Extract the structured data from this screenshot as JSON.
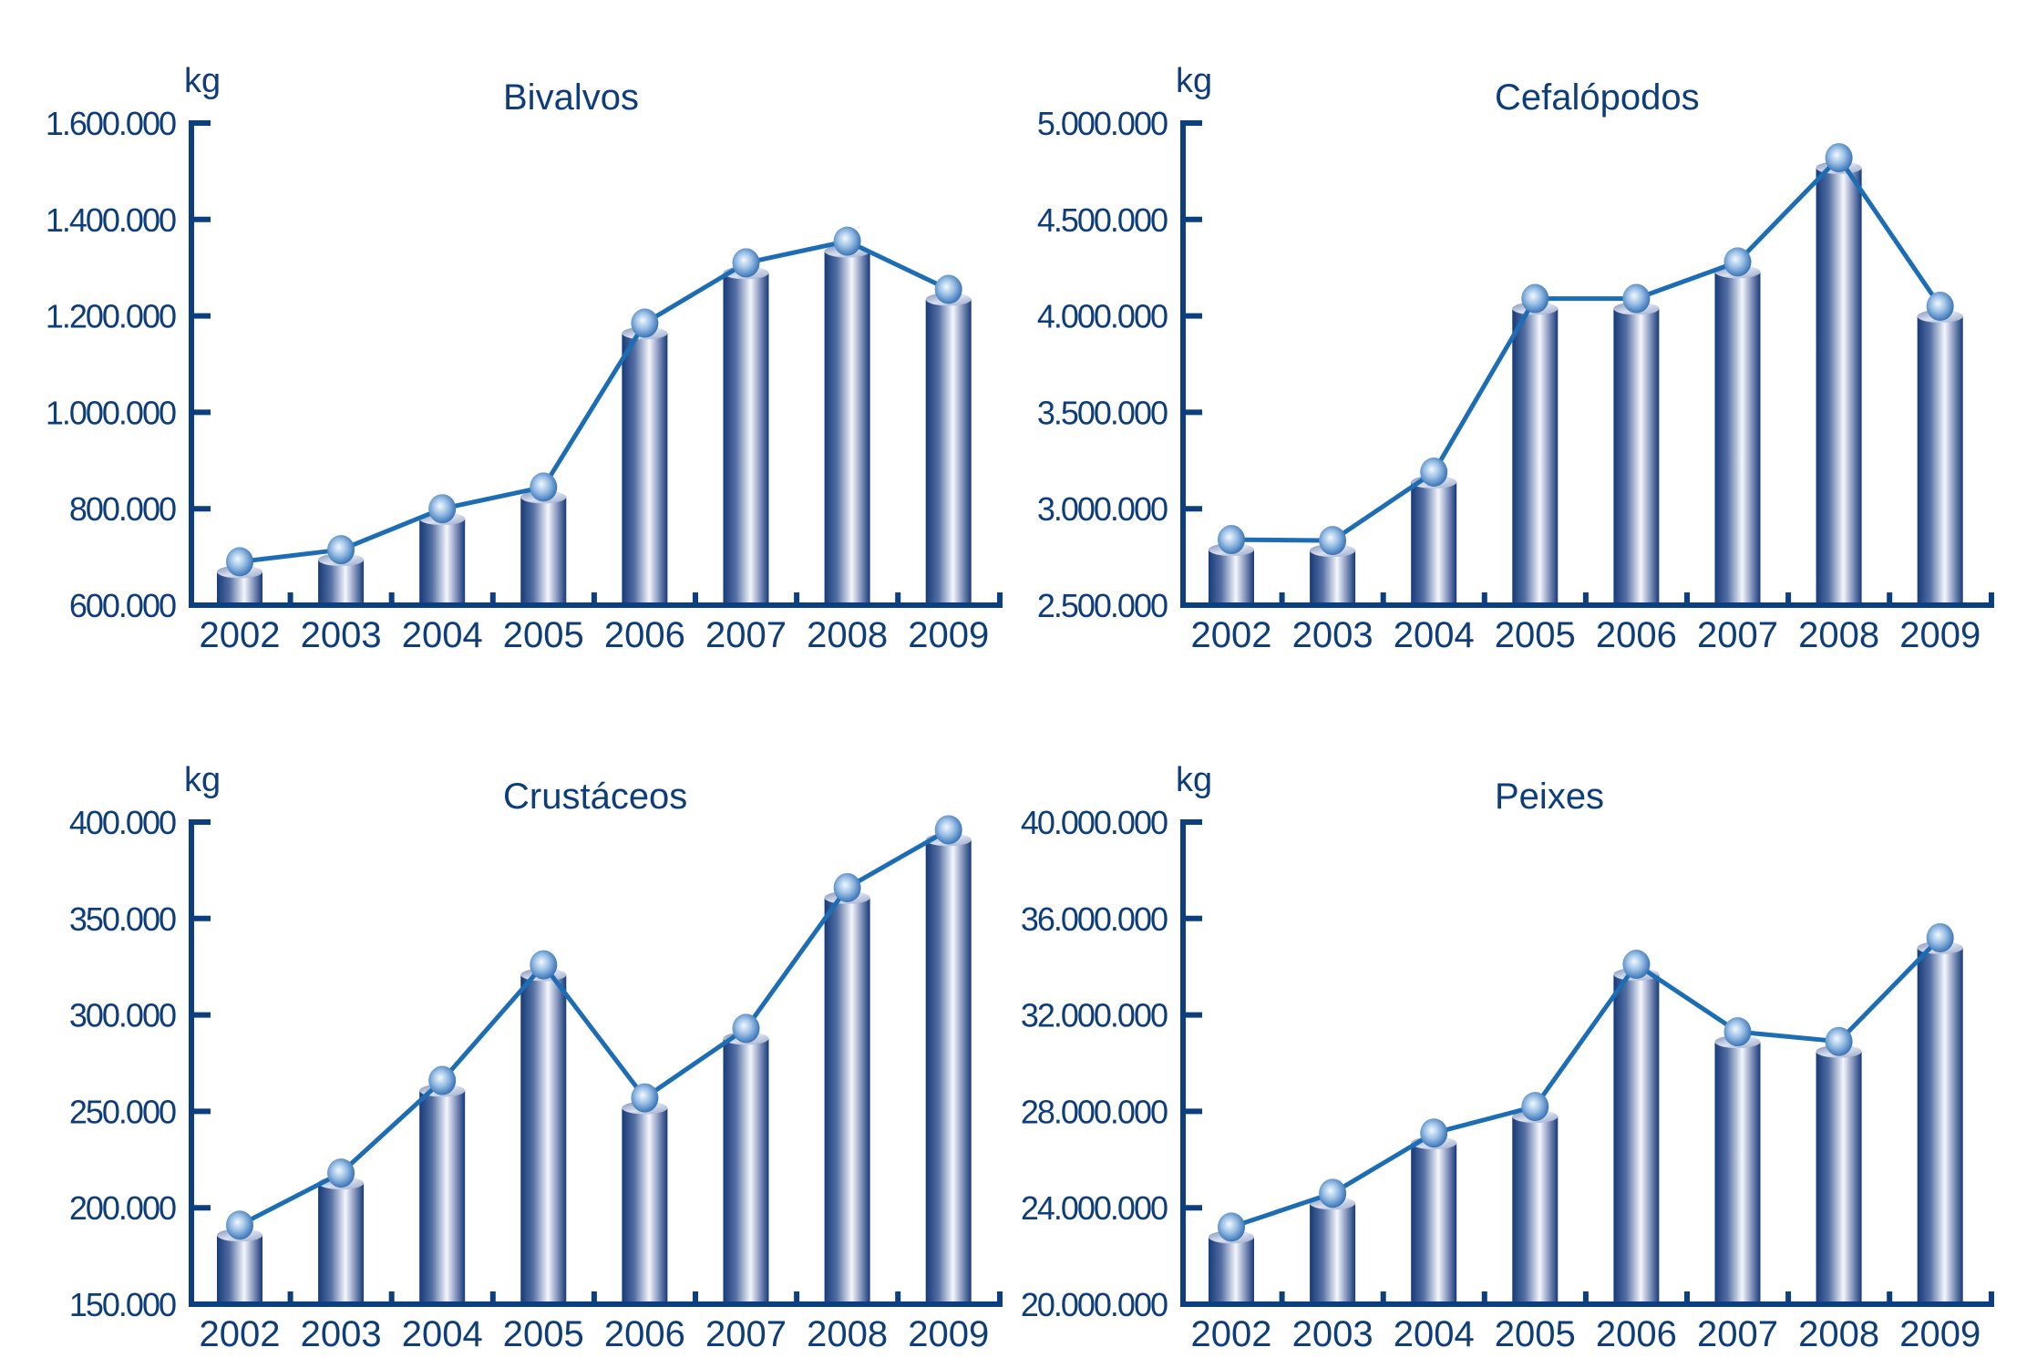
{
  "colors": {
    "axis": "#0b3f7f",
    "text": "#0d3d7a",
    "line": "#1c6db4",
    "bar_dark": "#1b3f7d",
    "bar_light": "#f4f6fb",
    "marker": "#2a6db5"
  },
  "chart_data": [
    {
      "type": "bar",
      "title": "Bivalvos",
      "ylabel": "kg",
      "xlabel": "",
      "categories": [
        "2002",
        "2003",
        "2004",
        "2005",
        "2006",
        "2007",
        "2008",
        "2009"
      ],
      "values": [
        690000,
        715000,
        800000,
        845000,
        1185000,
        1310000,
        1355000,
        1255000
      ],
      "overlay": "line-with-markers",
      "ylim": [
        600000,
        1600000
      ],
      "yticks": [
        600000,
        800000,
        1000000,
        1200000,
        1400000,
        1600000
      ],
      "ytick_labels": [
        "600.000",
        "800.000",
        "1.000.000",
        "1.200.000",
        "1.400.000",
        "1.600.000"
      ],
      "grid": false,
      "legend": "none"
    },
    {
      "type": "bar",
      "title": "Cefalópodos",
      "ylabel": "kg",
      "xlabel": "",
      "categories": [
        "2002",
        "2003",
        "2004",
        "2005",
        "2006",
        "2007",
        "2008",
        "2009"
      ],
      "values": [
        2840000,
        2835000,
        3190000,
        4090000,
        4090000,
        4280000,
        4820000,
        4050000
      ],
      "overlay": "line-with-markers",
      "ylim": [
        2500000,
        5000000
      ],
      "yticks": [
        2500000,
        3000000,
        3500000,
        4000000,
        4500000,
        5000000
      ],
      "ytick_labels": [
        "2.500.000",
        "3.000.000",
        "3.500.000",
        "4.000.000",
        "4.500.000",
        "5.000.000"
      ],
      "grid": false,
      "legend": "none"
    },
    {
      "type": "bar",
      "title": "Crustáceos",
      "ylabel": "kg",
      "xlabel": "",
      "categories": [
        "2002",
        "2003",
        "2004",
        "2005",
        "2006",
        "2007",
        "2008",
        "2009"
      ],
      "values": [
        191000,
        218000,
        266000,
        326000,
        257000,
        293000,
        366000,
        396000
      ],
      "overlay": "line-with-markers",
      "ylim": [
        150000,
        400000
      ],
      "yticks": [
        150000,
        200000,
        250000,
        300000,
        350000,
        400000
      ],
      "ytick_labels": [
        "150.000",
        "200.000",
        "250.000",
        "300.000",
        "350.000",
        "400.000"
      ],
      "grid": false,
      "legend": "none"
    },
    {
      "type": "bar",
      "title": "Peixes",
      "ylabel": "kg",
      "xlabel": "",
      "categories": [
        "2002",
        "2003",
        "2004",
        "2005",
        "2006",
        "2007",
        "2008",
        "2009"
      ],
      "values": [
        23200000,
        24600000,
        27100000,
        28200000,
        34100000,
        31300000,
        30900000,
        35200000
      ],
      "overlay": "line-with-markers",
      "ylim": [
        20000000,
        40000000
      ],
      "yticks": [
        20000000,
        24000000,
        28000000,
        32000000,
        36000000,
        40000000
      ],
      "ytick_labels": [
        "20.000.000",
        "24.000.000",
        "28.000.000",
        "32.000.000",
        "36.000.000",
        "40.000.000"
      ],
      "grid": false,
      "legend": "none"
    }
  ]
}
